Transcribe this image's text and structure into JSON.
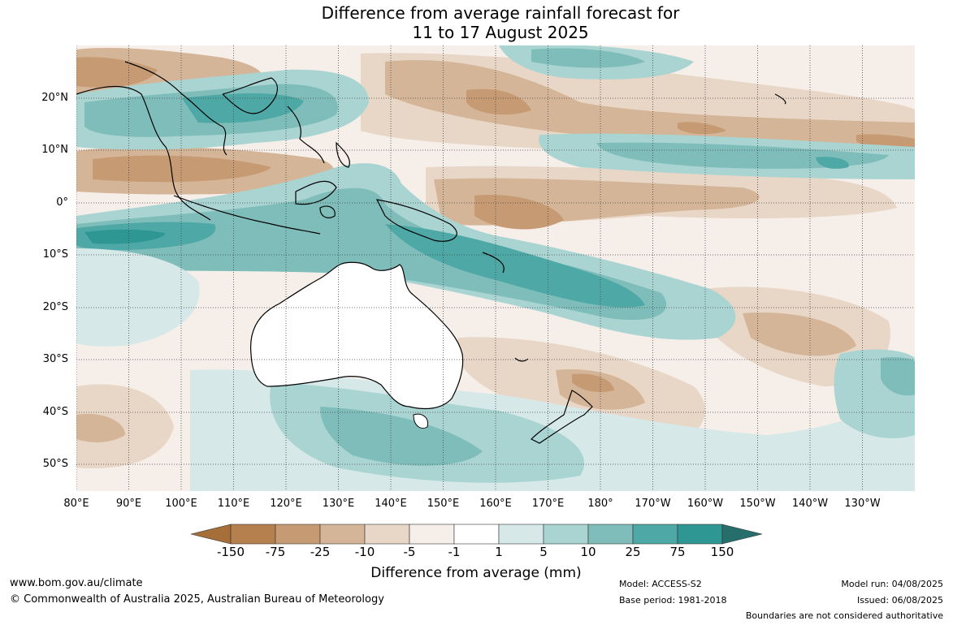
{
  "title": {
    "line1": "Difference from average rainfall forecast for",
    "line2": "11 to 17 August 2025"
  },
  "map": {
    "lat_labels": [
      "20°N",
      "10°N",
      "0°",
      "10°S",
      "20°S",
      "30°S",
      "40°S",
      "50°S"
    ],
    "lon_labels": [
      "80°E",
      "90°E",
      "100°E",
      "110°E",
      "120°E",
      "130°E",
      "140°E",
      "150°E",
      "160°E",
      "170°E",
      "180°",
      "170°W",
      "160°W",
      "150°W",
      "140°W",
      "130°W"
    ]
  },
  "legend": {
    "title": "Difference from average (mm)",
    "tick_labels": [
      "-150",
      "-75",
      "-25",
      "-10",
      "-5",
      "-1",
      "1",
      "5",
      "10",
      "25",
      "75",
      "150"
    ],
    "colors": [
      "#a66f3a",
      "#b5804e",
      "#c69b74",
      "#d5b597",
      "#e8d6c6",
      "#f6efe9",
      "#ffffff",
      "#d6e9e8",
      "#a9d4d2",
      "#7fbdbb",
      "#4ea8a6",
      "#2e9793",
      "#256e6c"
    ]
  },
  "footer": {
    "website": "www.bom.gov.au/climate",
    "copyright": "© Commonwealth of Australia 2025, Australian Bureau of Meteorology",
    "model": "Model: ACCESS-S2",
    "base_period": "Base period: 1981-2018",
    "model_run": "Model run: 04/08/2025",
    "issued": "Issued: 06/08/2025",
    "disclaimer": "Boundaries are not considered authoritative"
  }
}
